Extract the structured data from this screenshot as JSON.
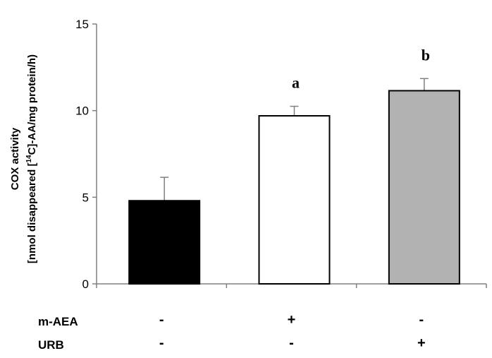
{
  "chart_data": {
    "type": "bar",
    "ylabel_line1": "COX activity",
    "ylabel_line2_pre": "[nmol disappeared [",
    "ylabel_line2_sup": "14",
    "ylabel_line2_post": "C]-AA/mg protein/h)",
    "ylim": [
      0,
      15
    ],
    "yticks": [
      0,
      5,
      10,
      15
    ],
    "grid": false,
    "legend": "none",
    "bars": [
      {
        "value": 4.8,
        "error": 1.35,
        "color": "#000000",
        "annotation": ""
      },
      {
        "value": 9.7,
        "error": 0.55,
        "color": "#ffffff",
        "annotation": "a"
      },
      {
        "value": 11.15,
        "error": 0.7,
        "color": "#b2b2b2",
        "annotation": "b"
      }
    ],
    "conditions": [
      {
        "name": "m-AEA",
        "signs": [
          "-",
          "+",
          "-"
        ]
      },
      {
        "name": "URB",
        "signs": [
          "-",
          "-",
          "+"
        ]
      }
    ]
  }
}
